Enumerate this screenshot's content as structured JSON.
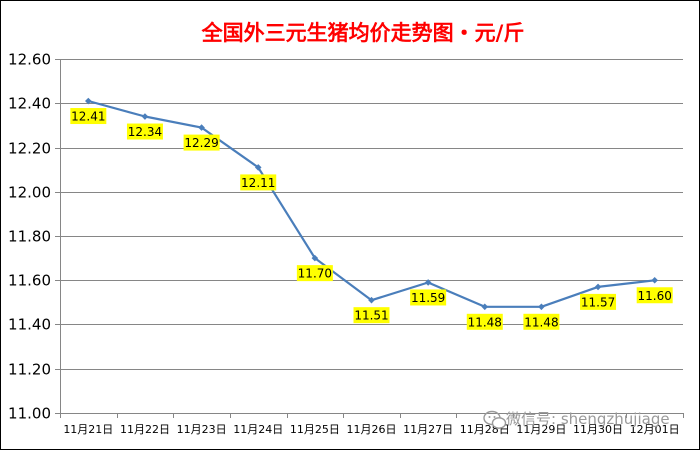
{
  "chart_data": {
    "type": "line",
    "title": "全国外三元生猪均价走势图・元/斤",
    "categories": [
      "11月21日",
      "11月22日",
      "11月23日",
      "11月24日",
      "11月25日",
      "11月26日",
      "11月27日",
      "11月28日",
      "11月29日",
      "11月30日",
      "12月01日"
    ],
    "values": [
      12.41,
      12.34,
      12.29,
      12.11,
      11.7,
      11.51,
      11.59,
      11.48,
      11.48,
      11.57,
      11.6
    ],
    "data_labels": [
      "12.41",
      "12.34",
      "12.29",
      "12.11",
      "11.70",
      "11.51",
      "11.59",
      "11.48",
      "11.48",
      "11.57",
      "11.60"
    ],
    "ylim": [
      11.0,
      12.6
    ],
    "yticks": [
      "11.00",
      "11.20",
      "11.40",
      "11.60",
      "11.80",
      "12.00",
      "12.20",
      "12.40",
      "12.60"
    ],
    "xlabel": "",
    "ylabel": "",
    "grid": true,
    "legend": "none"
  },
  "watermark": {
    "text": "微信号: shengzhujiage",
    "icon": "wechat-logo-icon"
  },
  "colors": {
    "title": "#ff0000",
    "line": "#4a7ebb",
    "label_bg": "#ffff00",
    "grid": "#868686",
    "border": "#000000"
  }
}
